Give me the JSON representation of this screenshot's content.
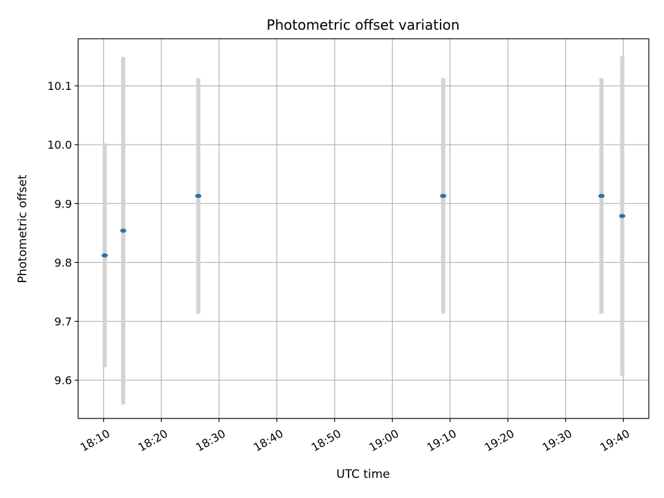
{
  "chart_data": {
    "type": "scatter",
    "title": "Photometric offset variation",
    "xlabel": "UTC time",
    "ylabel": "Photometric offset",
    "grid": true,
    "xlim": [
      "18:05:36",
      "19:44:24"
    ],
    "ylim": [
      9.535,
      10.18
    ],
    "x_ticks": [
      "18:10",
      "18:20",
      "18:30",
      "18:40",
      "18:50",
      "19:00",
      "19:10",
      "19:20",
      "19:30",
      "19:40"
    ],
    "y_ticks": [
      "9.6",
      "9.7",
      "9.8",
      "9.9",
      "10.0",
      "10.1"
    ],
    "marker_color": "#1f77b4",
    "errorbar_color": "#d3d3d3",
    "points": [
      {
        "x": "18:10:12",
        "y": 9.812,
        "yerr": 0.19
      },
      {
        "x": "18:13:24",
        "y": 9.854,
        "yerr": 0.295
      },
      {
        "x": "18:26:24",
        "y": 9.913,
        "yerr": 0.2
      },
      {
        "x": "19:08:48",
        "y": 9.913,
        "yerr": 0.2
      },
      {
        "x": "19:36:12",
        "y": 9.913,
        "yerr": 0.2
      },
      {
        "x": "19:39:48",
        "y": 9.879,
        "yerr": 0.272
      }
    ]
  }
}
